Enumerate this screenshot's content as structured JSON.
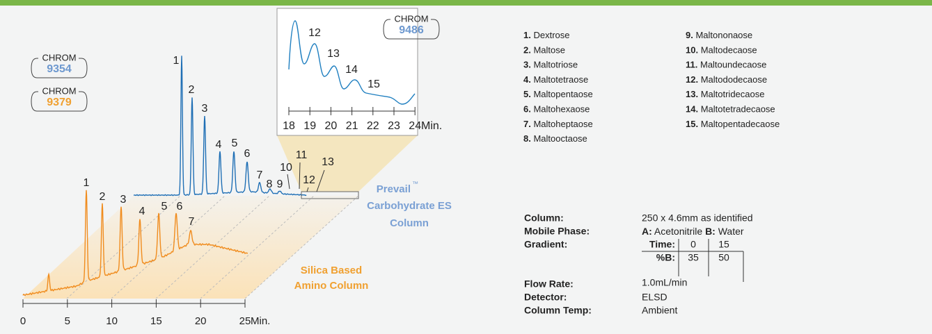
{
  "badges": [
    {
      "top": "CHROM",
      "number": "9354"
    },
    {
      "top": "CHROM",
      "number": "9379"
    },
    {
      "top": "CHROM",
      "number": "9486"
    }
  ],
  "main_axis": {
    "ticks": [
      "0",
      "5",
      "10",
      "15",
      "20",
      "25"
    ],
    "unit": "Min."
  },
  "inset_axis": {
    "ticks": [
      "18",
      "19",
      "20",
      "21",
      "22",
      "23",
      "24"
    ],
    "unit": "Min."
  },
  "blue_peaks": [
    "1",
    "2",
    "3",
    "4",
    "5",
    "6",
    "7",
    "8",
    "9",
    "10",
    "11",
    "12",
    "13"
  ],
  "orange_peaks": [
    "1",
    "2",
    "3",
    "4",
    "5",
    "6",
    "7"
  ],
  "inset_peaks": [
    "12",
    "13",
    "14",
    "15"
  ],
  "blue_column": {
    "line1": "Prevail",
    "tm": "™",
    "line2": "Carbohydrate ES",
    "line3": "Column"
  },
  "orange_column": {
    "line1": "Silica Based",
    "line2": "Amino Column"
  },
  "legend": [
    {
      "num": "1.",
      "name": "Dextrose"
    },
    {
      "num": "2.",
      "name": "Maltose"
    },
    {
      "num": "3.",
      "name": "Maltotriose"
    },
    {
      "num": "4.",
      "name": "Maltotetraose"
    },
    {
      "num": "5.",
      "name": "Maltopentaose"
    },
    {
      "num": "6.",
      "name": "Maltohexaose"
    },
    {
      "num": "7.",
      "name": "Maltoheptaose"
    },
    {
      "num": "8.",
      "name": "Maltooctaose"
    },
    {
      "num": "9.",
      "name": "Maltononaose"
    },
    {
      "num": "10.",
      "name": "Maltodecaose"
    },
    {
      "num": "11.",
      "name": "Maltoundecaose"
    },
    {
      "num": "12.",
      "name": "Maltododecaose"
    },
    {
      "num": "13.",
      "name": "Maltotridecaose"
    },
    {
      "num": "14.",
      "name": "Maltotetradecaose"
    },
    {
      "num": "15.",
      "name": "Maltopentadecaose"
    }
  ],
  "conditions": {
    "column": {
      "label": "Column:",
      "value": "250 x 4.6mm as identified"
    },
    "mobile_phase": {
      "label": "Mobile Phase:",
      "a_label": "A:",
      "a_value": "Acetonitrile",
      "b_label": "B:",
      "b_value": "Water"
    },
    "gradient": {
      "label": "Gradient:",
      "time_label": "Time:",
      "times": [
        "0",
        "15"
      ],
      "b_label": "%B:",
      "percents": [
        "35",
        "50"
      ]
    },
    "flow_rate": {
      "label": "Flow Rate:",
      "value": "1.0mL/min"
    },
    "detector": {
      "label": "Detector:",
      "value": "ELSD"
    },
    "column_temp": {
      "label": "Column Temp:",
      "value": "Ambient"
    }
  }
}
